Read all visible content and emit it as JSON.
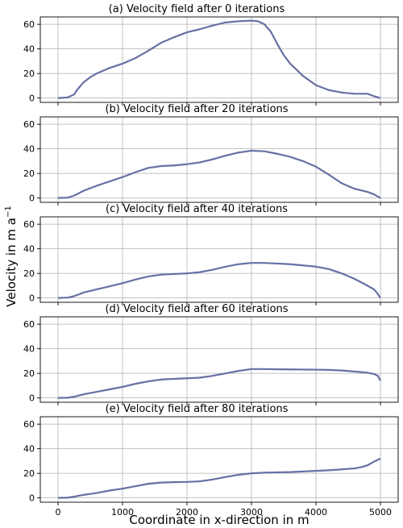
{
  "figure": {
    "ylabel": "Velocity in m a",
    "ylabel_sup": "−1",
    "xlabel": "Coordinate in x-direction in m"
  },
  "colors": {
    "line": "#6770a4",
    "grid": "#b0b0b0",
    "axes": "#000000"
  },
  "chart_data": [
    {
      "type": "line",
      "title": "(a) Velocity field after 0 iterations",
      "xlim": [
        0,
        5000
      ],
      "ylim": [
        0,
        65
      ],
      "xticks": [
        0,
        1000,
        2000,
        3000,
        4000,
        5000
      ],
      "yticks": [
        0,
        20,
        40,
        60
      ],
      "grid": true,
      "x": [
        0,
        150,
        250,
        300,
        400,
        500,
        600,
        800,
        1000,
        1200,
        1400,
        1600,
        1800,
        2000,
        2200,
        2400,
        2600,
        2800,
        3000,
        3100,
        3200,
        3300,
        3400,
        3500,
        3600,
        3800,
        4000,
        4200,
        4400,
        4600,
        4800,
        4900,
        5000
      ],
      "y": [
        0,
        0.5,
        3,
        7,
        13,
        17,
        20,
        24.5,
        28,
        32.5,
        38.5,
        45,
        49.5,
        53.5,
        56,
        59,
        61.5,
        62.5,
        63,
        62.5,
        60,
        54,
        44,
        35,
        28,
        18,
        10.5,
        6.5,
        4.5,
        3.5,
        3.5,
        1.5,
        0
      ]
    },
    {
      "type": "line",
      "title": "(b) Velocity field after 20 iterations",
      "xlim": [
        0,
        5000
      ],
      "ylim": [
        0,
        65
      ],
      "xticks": [
        0,
        1000,
        2000,
        3000,
        4000,
        5000
      ],
      "yticks": [
        0,
        20,
        40,
        60
      ],
      "grid": true,
      "x": [
        0,
        150,
        250,
        400,
        600,
        800,
        1000,
        1200,
        1400,
        1600,
        1800,
        2000,
        2200,
        2400,
        2600,
        2800,
        3000,
        3200,
        3400,
        3600,
        3800,
        4000,
        4200,
        4400,
        4600,
        4800,
        4900,
        5000
      ],
      "y": [
        0,
        0.3,
        2,
        6,
        10,
        13.5,
        17,
        21,
        24.5,
        26,
        26.5,
        27.5,
        29,
        31.5,
        34.5,
        37,
        38.5,
        38,
        36,
        33.5,
        30,
        25.5,
        19,
        12,
        7.5,
        5,
        3,
        0
      ]
    },
    {
      "type": "line",
      "title": "(c) Velocity field after 40 iterations",
      "xlim": [
        0,
        5000
      ],
      "ylim": [
        0,
        65
      ],
      "xticks": [
        0,
        1000,
        2000,
        3000,
        4000,
        5000
      ],
      "yticks": [
        0,
        20,
        40,
        60
      ],
      "grid": true,
      "x": [
        0,
        150,
        250,
        400,
        600,
        800,
        1000,
        1200,
        1400,
        1600,
        1800,
        2000,
        2200,
        2400,
        2600,
        2800,
        3000,
        3200,
        3400,
        3600,
        3800,
        4000,
        4200,
        4400,
        4600,
        4800,
        4900,
        4950,
        5000
      ],
      "y": [
        0,
        0.3,
        1.5,
        4.5,
        7,
        9.5,
        12,
        15,
        17.5,
        19,
        19.5,
        20,
        21,
        23,
        25.5,
        27.5,
        28.5,
        28.5,
        28,
        27.5,
        26.5,
        25.5,
        23.5,
        20,
        15.5,
        10,
        7,
        4,
        0
      ]
    },
    {
      "type": "line",
      "title": "(d) Velocity field after 60 iterations",
      "xlim": [
        0,
        5000
      ],
      "ylim": [
        0,
        65
      ],
      "xticks": [
        0,
        1000,
        2000,
        3000,
        4000,
        5000
      ],
      "yticks": [
        0,
        20,
        40,
        60
      ],
      "grid": true,
      "x": [
        0,
        150,
        250,
        400,
        600,
        800,
        1000,
        1200,
        1400,
        1600,
        1800,
        2000,
        2200,
        2400,
        2600,
        2800,
        3000,
        3200,
        3400,
        3600,
        3800,
        4000,
        4200,
        4400,
        4600,
        4800,
        4900,
        4960,
        5000
      ],
      "y": [
        0,
        0.2,
        1,
        3,
        5,
        7,
        9,
        11.5,
        13.5,
        15,
        15.5,
        16,
        16.5,
        18,
        20,
        22,
        23.5,
        23.5,
        23.3,
        23.2,
        23.1,
        23,
        22.8,
        22.3,
        21.5,
        20.5,
        19.5,
        18,
        14
      ]
    },
    {
      "type": "line",
      "title": "(e) Velocity field after 80 iterations",
      "xlim": [
        0,
        5000
      ],
      "ylim": [
        0,
        65
      ],
      "xticks": [
        0,
        1000,
        2000,
        3000,
        4000,
        5000
      ],
      "yticks": [
        0,
        20,
        40,
        60
      ],
      "grid": true,
      "x": [
        0,
        150,
        250,
        400,
        600,
        800,
        1000,
        1200,
        1400,
        1600,
        1800,
        2000,
        2200,
        2400,
        2600,
        2800,
        3000,
        3200,
        3400,
        3600,
        3800,
        4000,
        4200,
        4400,
        4600,
        4700,
        4800,
        4900,
        5000
      ],
      "y": [
        0,
        0.2,
        1,
        2.5,
        4,
        6,
        7.5,
        9.5,
        11.5,
        12.5,
        12.8,
        13,
        13.5,
        15,
        17,
        18.8,
        20,
        20.5,
        20.8,
        21,
        21.5,
        22,
        22.5,
        23.2,
        24,
        25,
        26.5,
        29.5,
        32
      ]
    }
  ]
}
